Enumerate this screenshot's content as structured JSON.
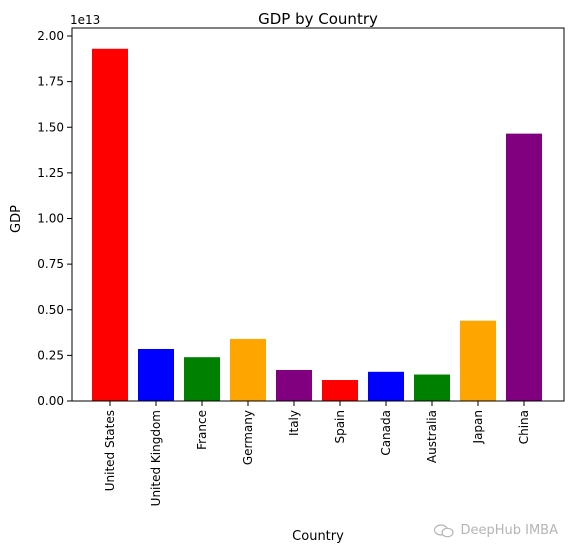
{
  "chart_data": {
    "type": "bar",
    "title": "GDP by Country",
    "xlabel": "Country",
    "ylabel": "GDP",
    "exponent_label": "1e13",
    "ylim": [
      0,
      2.0
    ],
    "yticks": [
      "0.00",
      "0.25",
      "0.50",
      "0.75",
      "1.00",
      "1.25",
      "1.50",
      "1.75",
      "2.00"
    ],
    "categories": [
      "United States",
      "United Kingdom",
      "France",
      "Germany",
      "Italy",
      "Spain",
      "Canada",
      "Australia",
      "Japan",
      "China"
    ],
    "values": [
      1.93,
      0.285,
      0.24,
      0.34,
      0.17,
      0.115,
      0.16,
      0.145,
      0.44,
      1.465
    ],
    "colors": [
      "#ff0000",
      "#0000ff",
      "#008000",
      "#ffa500",
      "#800080",
      "#ff0000",
      "#0000ff",
      "#008000",
      "#ffa500",
      "#800080"
    ],
    "grid": false,
    "legend": "none"
  },
  "watermark": {
    "text": "DeepHub IMBA",
    "icon": "wechat-icon"
  }
}
